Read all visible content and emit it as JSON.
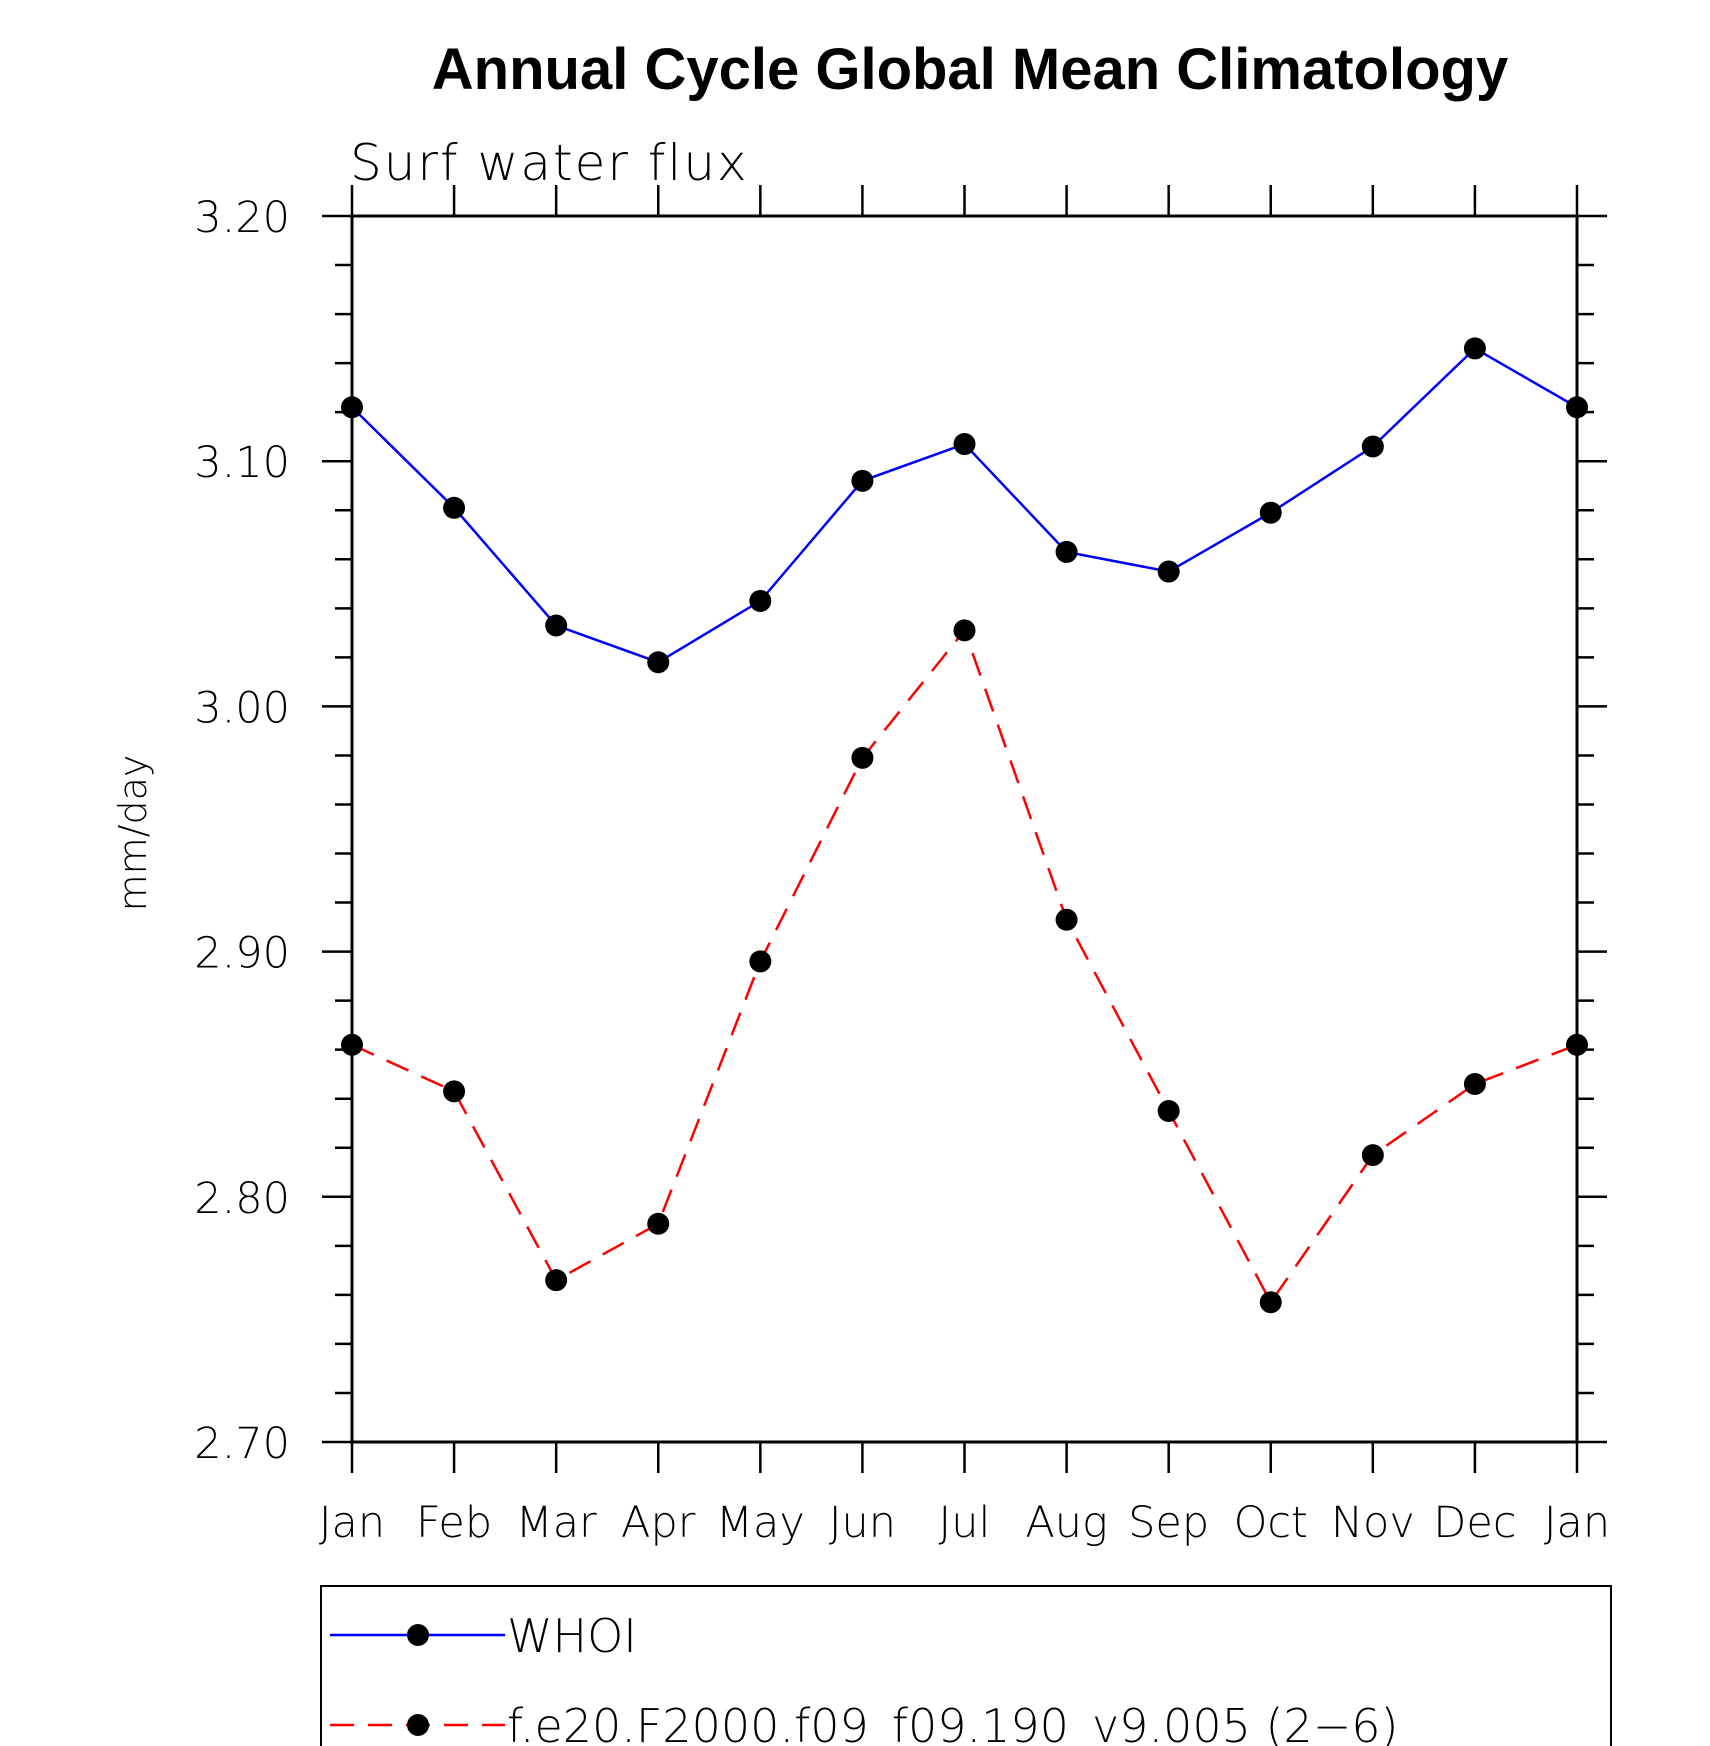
{
  "chart_data": {
    "type": "line",
    "title": "Annual Cycle Global Mean Climatology",
    "subtitle": "Surf water flux",
    "xlabel": "",
    "ylabel": "mm/day",
    "categories": [
      "Jan",
      "Feb",
      "Mar",
      "Apr",
      "May",
      "Jun",
      "Jul",
      "Aug",
      "Sep",
      "Oct",
      "Nov",
      "Dec",
      "Jan"
    ],
    "ylim": [
      2.7,
      3.2
    ],
    "yticks": [
      "2.70",
      "2.80",
      "2.90",
      "3.00",
      "3.10",
      "3.20"
    ],
    "series": [
      {
        "name": "WHOI",
        "color": "#0000ff",
        "dash": "solid",
        "values": [
          3.122,
          3.081,
          3.033,
          3.018,
          3.043,
          3.092,
          3.107,
          3.063,
          3.055,
          3.079,
          3.106,
          3.146,
          3.122
        ]
      },
      {
        "name": "f.e20.F2000.f09_f09.190_v9.005 (2−6)",
        "color": "#ff0000",
        "dash": "dashed",
        "values": [
          2.862,
          2.843,
          2.766,
          2.789,
          2.896,
          2.979,
          3.031,
          2.913,
          2.835,
          2.757,
          2.817,
          2.846,
          2.862
        ]
      }
    ],
    "marker_color": "#000000",
    "legend_position": "bottom"
  }
}
